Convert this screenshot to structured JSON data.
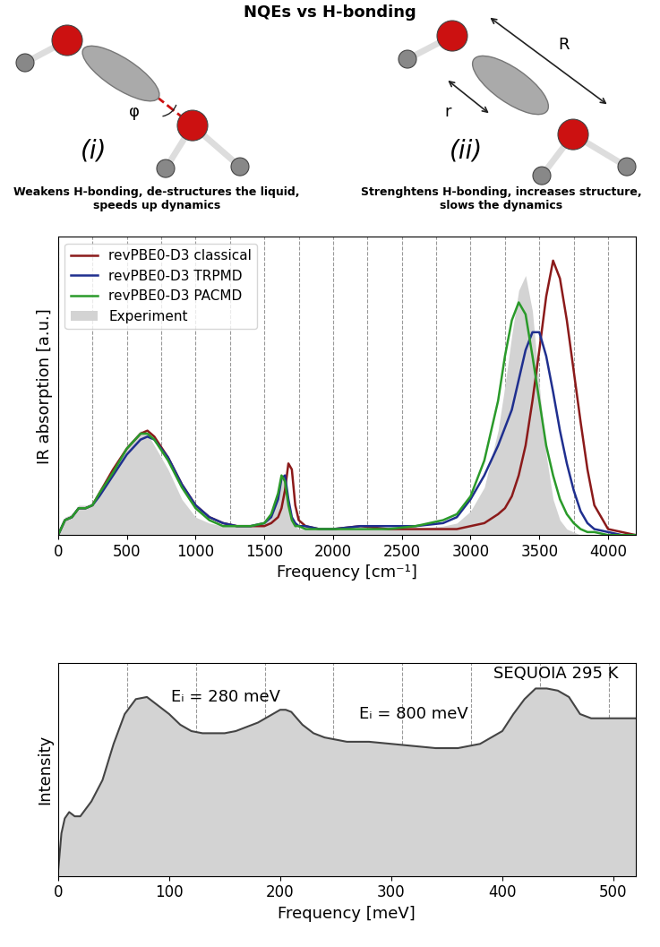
{
  "diagram": {
    "title": "NQEs vs H-bonding",
    "panels": [
      {
        "label": "(i)",
        "angle_label": "φ",
        "caption": "Weakens H-bonding, de-structures the liquid, speeds up dynamics"
      },
      {
        "label": "(ii)",
        "distance_labels": [
          "r",
          "R"
        ],
        "caption": "Strenghtens H-bonding, increases structure, slows the dynamics"
      }
    ]
  },
  "chart_data": [
    {
      "type": "line",
      "xlabel": "Frequency [cm⁻¹]",
      "ylabel": "IR absorption [a.u.]",
      "x": [
        0,
        50,
        100,
        150,
        200,
        250,
        300,
        400,
        500,
        600,
        650,
        700,
        800,
        900,
        1000,
        1100,
        1200,
        1300,
        1400,
        1500,
        1550,
        1600,
        1625,
        1650,
        1675,
        1700,
        1725,
        1750,
        1800,
        1900,
        2000,
        2200,
        2400,
        2600,
        2800,
        2900,
        3000,
        3100,
        3200,
        3250,
        3300,
        3350,
        3400,
        3450,
        3500,
        3550,
        3600,
        3650,
        3700,
        3750,
        3800,
        3850,
        3900,
        4000,
        4100,
        4200
      ],
      "xlim": [
        0,
        4200
      ],
      "xticks": [
        0,
        500,
        1000,
        1500,
        2000,
        2500,
        3000,
        3500,
        4000
      ],
      "ylim": [
        0,
        1
      ],
      "tick_labels": "x",
      "grid": true,
      "legend": "upper left",
      "vlines": [
        250,
        750,
        1250,
        1750,
        2250,
        2750,
        3250,
        3750
      ],
      "series": [
        {
          "name": "revPBE0-D3 classical",
          "type": "line",
          "color": "#8b1a1a",
          "values": [
            0,
            0.05,
            0.06,
            0.09,
            0.09,
            0.1,
            0.14,
            0.22,
            0.29,
            0.34,
            0.35,
            0.33,
            0.26,
            0.17,
            0.1,
            0.06,
            0.04,
            0.03,
            0.03,
            0.03,
            0.04,
            0.06,
            0.09,
            0.15,
            0.24,
            0.22,
            0.1,
            0.05,
            0.03,
            0.02,
            0.02,
            0.03,
            0.02,
            0.02,
            0.02,
            0.02,
            0.03,
            0.04,
            0.07,
            0.09,
            0.13,
            0.2,
            0.3,
            0.45,
            0.62,
            0.8,
            0.92,
            0.86,
            0.72,
            0.55,
            0.38,
            0.22,
            0.1,
            0.02,
            0.01,
            0
          ]
        },
        {
          "name": "revPBE0-D3 TRPMD",
          "type": "line",
          "color": "#1f2f8f",
          "values": [
            0,
            0.05,
            0.06,
            0.09,
            0.09,
            0.1,
            0.13,
            0.2,
            0.27,
            0.32,
            0.33,
            0.32,
            0.26,
            0.17,
            0.1,
            0.06,
            0.04,
            0.03,
            0.03,
            0.04,
            0.06,
            0.12,
            0.19,
            0.2,
            0.12,
            0.06,
            0.04,
            0.03,
            0.03,
            0.02,
            0.02,
            0.03,
            0.03,
            0.03,
            0.04,
            0.06,
            0.12,
            0.2,
            0.3,
            0.36,
            0.42,
            0.52,
            0.62,
            0.68,
            0.68,
            0.6,
            0.48,
            0.35,
            0.24,
            0.15,
            0.08,
            0.04,
            0.02,
            0.01,
            0,
            0
          ]
        },
        {
          "name": "revPBE0-D3 PACMD",
          "type": "line",
          "color": "#2a9a2a",
          "values": [
            0,
            0.05,
            0.06,
            0.09,
            0.09,
            0.1,
            0.14,
            0.21,
            0.29,
            0.34,
            0.34,
            0.32,
            0.25,
            0.16,
            0.09,
            0.05,
            0.03,
            0.03,
            0.03,
            0.04,
            0.07,
            0.14,
            0.2,
            0.18,
            0.1,
            0.05,
            0.03,
            0.03,
            0.02,
            0.02,
            0.02,
            0.02,
            0.02,
            0.03,
            0.05,
            0.07,
            0.13,
            0.25,
            0.45,
            0.6,
            0.72,
            0.78,
            0.74,
            0.6,
            0.45,
            0.3,
            0.2,
            0.12,
            0.07,
            0.04,
            0.02,
            0.01,
            0.01,
            0,
            0,
            0
          ]
        },
        {
          "name": "Experiment",
          "type": "area",
          "color": "#d3d3d3",
          "values": [
            0,
            0.06,
            0.07,
            0.1,
            0.1,
            0.1,
            0.14,
            0.22,
            0.3,
            0.35,
            0.34,
            0.3,
            0.22,
            0.12,
            0.06,
            0.04,
            0.03,
            0.03,
            0.03,
            0.04,
            0.07,
            0.15,
            0.19,
            0.18,
            0.12,
            0.06,
            0.03,
            0.02,
            0.02,
            0.02,
            0.02,
            0.02,
            0.02,
            0.02,
            0.03,
            0.04,
            0.08,
            0.16,
            0.35,
            0.5,
            0.67,
            0.82,
            0.87,
            0.75,
            0.5,
            0.27,
            0.12,
            0.05,
            0.02,
            0.01,
            0,
            0,
            0,
            0,
            0,
            0
          ]
        }
      ]
    },
    {
      "type": "area",
      "xlabel": "Frequency [meV]",
      "ylabel": "Intensity",
      "annotations": [
        "Eᵢ = 280 meV",
        "Eᵢ = 800 meV",
        "SEQUOIA 295 K"
      ],
      "x": [
        0,
        3,
        6,
        10,
        15,
        20,
        30,
        40,
        50,
        60,
        70,
        80,
        90,
        100,
        110,
        120,
        130,
        140,
        150,
        160,
        170,
        180,
        190,
        200,
        205,
        210,
        220,
        230,
        240,
        250,
        260,
        280,
        300,
        320,
        340,
        360,
        380,
        400,
        410,
        420,
        430,
        440,
        450,
        460,
        470,
        480,
        490,
        500,
        510,
        520
      ],
      "values": [
        0.02,
        0.2,
        0.27,
        0.3,
        0.28,
        0.28,
        0.35,
        0.45,
        0.62,
        0.76,
        0.83,
        0.84,
        0.8,
        0.76,
        0.71,
        0.68,
        0.67,
        0.67,
        0.67,
        0.68,
        0.7,
        0.72,
        0.75,
        0.78,
        0.78,
        0.77,
        0.71,
        0.67,
        0.65,
        0.64,
        0.63,
        0.63,
        0.62,
        0.61,
        0.6,
        0.6,
        0.62,
        0.68,
        0.76,
        0.83,
        0.88,
        0.88,
        0.87,
        0.84,
        0.76,
        0.74,
        0.74,
        0.74,
        0.74,
        0.74
      ],
      "color": "#d3d3d3",
      "xlim": [
        0,
        520
      ],
      "xticks": [
        0,
        100,
        200,
        300,
        400,
        500
      ],
      "ylim": [
        0,
        1
      ],
      "tick_labels": "x",
      "grid": false,
      "vlines": [
        62,
        124,
        186,
        248,
        310,
        372,
        434,
        496
      ]
    }
  ]
}
